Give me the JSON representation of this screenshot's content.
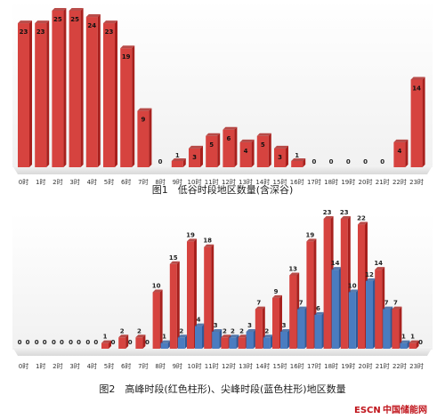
{
  "chart_data": [
    {
      "type": "bar",
      "title": "图1　低谷时段地区数量(含深谷)",
      "categories": [
        "0时",
        "1时",
        "2时",
        "3时",
        "4时",
        "5时",
        "6时",
        "7时",
        "8时",
        "9时",
        "10时",
        "11时",
        "12时",
        "13时",
        "14时",
        "15时",
        "16时",
        "17时",
        "18时",
        "19时",
        "20时",
        "21时",
        "22时",
        "23时"
      ],
      "series": [
        {
          "name": "",
          "values": [
            23,
            23,
            25,
            25,
            24,
            23,
            19,
            9,
            0,
            1,
            3,
            5,
            6,
            4,
            5,
            3,
            1,
            0,
            0,
            0,
            0,
            0,
            4,
            14
          ]
        }
      ],
      "ylim": [
        0,
        25
      ],
      "colors": {
        "bar": "#d6433f",
        "bar_dark": "#a8201d",
        "floor": "#e6e6e6"
      }
    },
    {
      "type": "bar",
      "title": "图2　高峰时段(红色柱形)、尖峰时段(蓝色柱形)地区数量",
      "categories": [
        "0时",
        "1时",
        "2时",
        "3时",
        "4时",
        "5时",
        "6时",
        "7时",
        "8时",
        "9时",
        "10时",
        "11时",
        "12时",
        "13时",
        "14时",
        "15时",
        "16时",
        "17时",
        "18时",
        "19时",
        "20时",
        "21时",
        "22时",
        "23时"
      ],
      "series": [
        {
          "name": "",
          "values": [
            0,
            0,
            0,
            0,
            0,
            1,
            2,
            2,
            10,
            15,
            19,
            18,
            2,
            2,
            7,
            9,
            13,
            19,
            23,
            23,
            22,
            14,
            7,
            1
          ]
        },
        {
          "name": "",
          "values": [
            0,
            0,
            0,
            0,
            0,
            0,
            0,
            0,
            1,
            2,
            4,
            3,
            2,
            3,
            2,
            3,
            7,
            6,
            14,
            10,
            12,
            7,
            1,
            0
          ]
        }
      ],
      "ylim": [
        0,
        23
      ],
      "colors": {
        "red": "#d6433f",
        "red_dark": "#a8201d",
        "blue": "#4a7cc0",
        "blue_dark": "#2e5a99",
        "floor": "#e6e6e6"
      }
    }
  ],
  "watermark": {
    "prefix": "ESCN",
    "suffix": "中国储能网"
  }
}
